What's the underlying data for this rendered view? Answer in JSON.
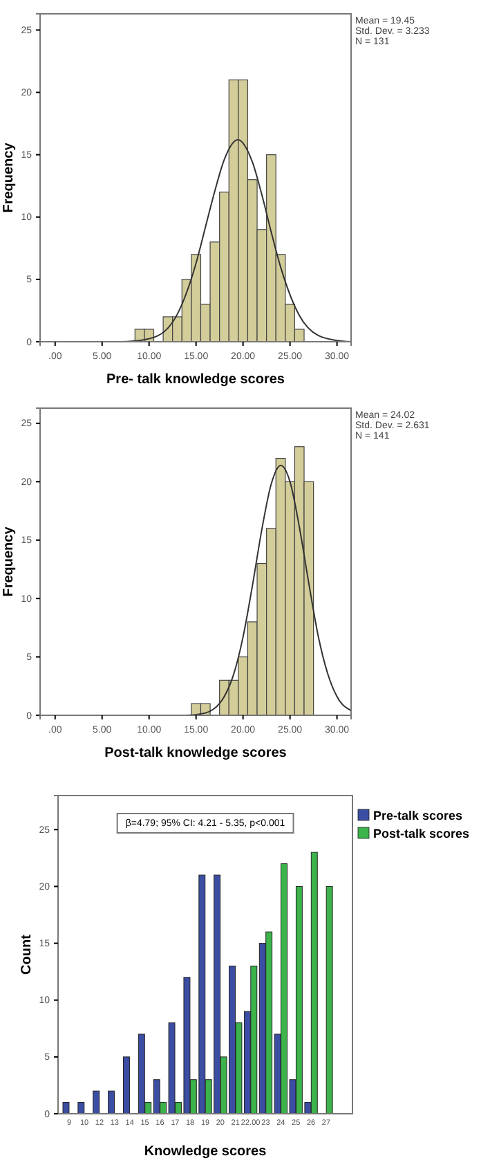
{
  "chart_data": [
    {
      "type": "histogram",
      "xlabel": "Pre- talk knowledge scores",
      "ylabel": "Frequency",
      "xlim": [
        -1.6,
        31.5
      ],
      "ylim": [
        0,
        26.3
      ],
      "xticks": [
        {
          "value": 0,
          "label": ".00"
        },
        {
          "value": 5,
          "label": "5.00"
        },
        {
          "value": 10,
          "label": "10.00"
        },
        {
          "value": 15,
          "label": "15.00"
        },
        {
          "value": 20,
          "label": "20.00"
        },
        {
          "value": 25,
          "label": "25.00"
        },
        {
          "value": 30,
          "label": "30.00"
        }
      ],
      "yticks": [
        0,
        5,
        10,
        15,
        20,
        25
      ],
      "grid": false,
      "annotations": [
        "Mean = 19.45",
        "Std. Dev. = 3.233",
        "N = 131"
      ],
      "series": [
        {
          "type": "histogram",
          "color": "#d3cd9a",
          "bins": [
            8.5,
            9.5,
            10.5,
            11.5,
            12.5,
            13.5,
            14.5,
            15.5,
            16.5,
            17.5,
            18.5,
            19.5,
            20.5,
            21.5,
            22.5,
            23.5,
            24.5,
            25.5,
            26.5
          ],
          "values": [
            1,
            1,
            0,
            2,
            2,
            5,
            7,
            3,
            8,
            12,
            21,
            21,
            13,
            9,
            15,
            7,
            3,
            1
          ]
        },
        {
          "type": "line",
          "color": "#333333",
          "x": [
            7,
            9,
            11,
            13,
            15,
            16,
            17,
            18,
            19.45,
            21,
            22,
            23,
            24,
            26,
            28,
            30,
            31.5
          ],
          "values": [
            0.0,
            0.1,
            0.5,
            2.2,
            6.3,
            9.2,
            12.1,
            14.6,
            16.2,
            14.4,
            11.8,
            8.8,
            6.0,
            2.1,
            0.5,
            0.1,
            0.0
          ]
        }
      ]
    },
    {
      "type": "histogram",
      "xlabel": "Post-talk knowledge scores",
      "ylabel": "Frequency",
      "xlim": [
        -1.6,
        31.5
      ],
      "ylim": [
        0,
        26.3
      ],
      "xticks": [
        {
          "value": 0,
          "label": ".00"
        },
        {
          "value": 5,
          "label": "5.00"
        },
        {
          "value": 10,
          "label": "10.00"
        },
        {
          "value": 15,
          "label": "15.00"
        },
        {
          "value": 20,
          "label": "20.00"
        },
        {
          "value": 25,
          "label": "25.00"
        },
        {
          "value": 30,
          "label": "30.00"
        }
      ],
      "yticks": [
        0,
        5,
        10,
        15,
        20,
        25
      ],
      "grid": false,
      "annotations": [
        "Mean = 24.02",
        "Std. Dev. = 2.631",
        "N = 141"
      ],
      "series": [
        {
          "type": "histogram",
          "color": "#d3cd9a",
          "bins": [
            14.5,
            15.5,
            16.5,
            17.5,
            18.5,
            19.5,
            20.5,
            21.5,
            22.5,
            23.5,
            24.5,
            25.5,
            26.5,
            27.5
          ],
          "values": [
            1,
            1,
            0,
            3,
            3,
            5,
            8,
            13,
            16,
            22,
            20,
            23,
            20
          ]
        },
        {
          "type": "line",
          "color": "#333333",
          "x": [
            14,
            16,
            18,
            19,
            20,
            21,
            22,
            23,
            24.02,
            25,
            26,
            27,
            28,
            29,
            30,
            31.5
          ],
          "values": [
            0.0,
            0.2,
            1.6,
            3.5,
            6.7,
            11.1,
            15.9,
            19.8,
            21.4,
            20.0,
            16.1,
            11.3,
            6.8,
            3.6,
            1.6,
            0.4
          ]
        }
      ]
    },
    {
      "type": "bar",
      "xlabel": "Knowledge scores",
      "ylabel": "Count",
      "ylim": [
        0,
        28
      ],
      "yticks": [
        0,
        5,
        10,
        15,
        20,
        25
      ],
      "grid": false,
      "legend": "top right",
      "annotations": [
        "β=4.79; 95% CI: 4.21 - 5.35, p<0.001"
      ],
      "categories": [
        "9",
        "10",
        "12",
        "13",
        "14",
        "15",
        "16",
        "17",
        "18",
        "19",
        "20",
        "21",
        "22.00",
        "23",
        "24",
        "25",
        "26",
        "27",
        null
      ],
      "series": [
        {
          "name": "Pre-talk scores",
          "color": "#3b4ea3",
          "values": [
            1,
            1,
            2,
            2,
            5,
            7,
            3,
            8,
            12,
            21,
            21,
            13,
            9,
            15,
            7,
            3,
            1,
            null,
            null
          ]
        },
        {
          "name": "Post-talk scores",
          "color": "#3cb44b",
          "values": [
            null,
            null,
            null,
            null,
            null,
            1,
            1,
            1,
            3,
            3,
            5,
            8,
            13,
            16,
            22,
            20,
            23,
            20,
            null
          ]
        }
      ]
    }
  ]
}
